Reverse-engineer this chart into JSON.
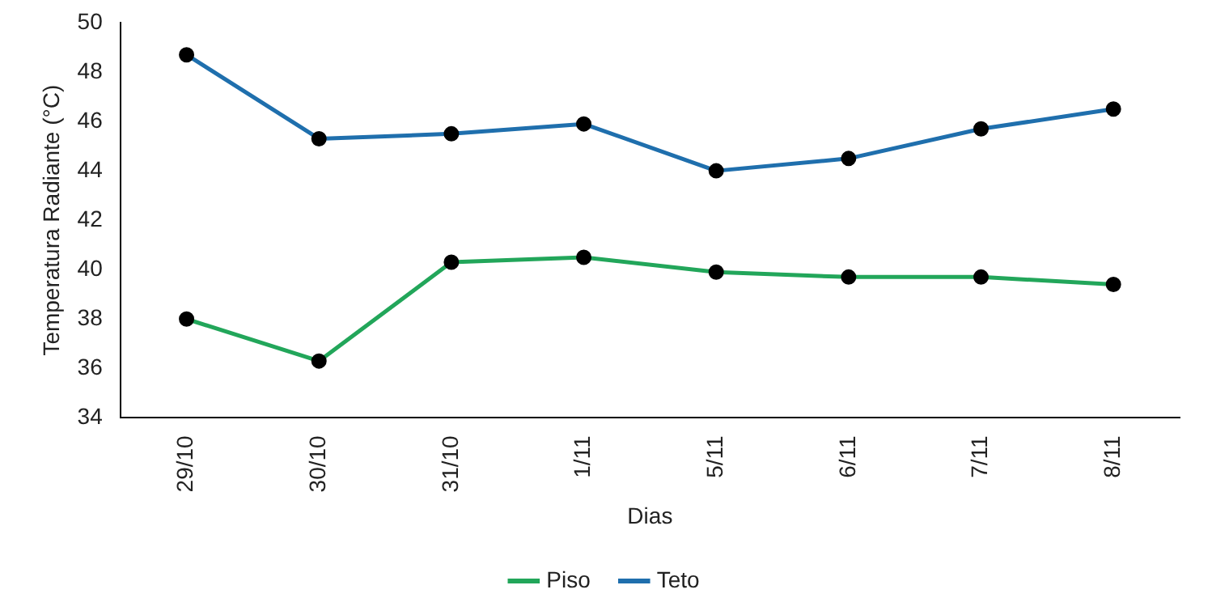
{
  "chart_data": {
    "type": "line",
    "xlabel": "Dias",
    "ylabel": "Temperatura Radiante (°C)",
    "categories": [
      "29/10",
      "30/10",
      "31/10",
      "1/11",
      "5/11",
      "6/11",
      "7/11",
      "8/11"
    ],
    "series": [
      {
        "name": "Piso",
        "color": "#22a65a",
        "values": [
          38.0,
          36.3,
          40.3,
          40.5,
          39.9,
          39.7,
          39.7,
          39.4
        ]
      },
      {
        "name": "Teto",
        "color": "#1f6fad",
        "values": [
          48.7,
          45.3,
          45.5,
          45.9,
          44.0,
          44.5,
          45.7,
          46.5
        ]
      }
    ],
    "ylim": [
      34,
      50
    ],
    "yticks": [
      34,
      36,
      38,
      40,
      42,
      44,
      46,
      48,
      50
    ],
    "grid": false,
    "legend": "bottom",
    "marker": "circle",
    "line_style": "solid"
  }
}
